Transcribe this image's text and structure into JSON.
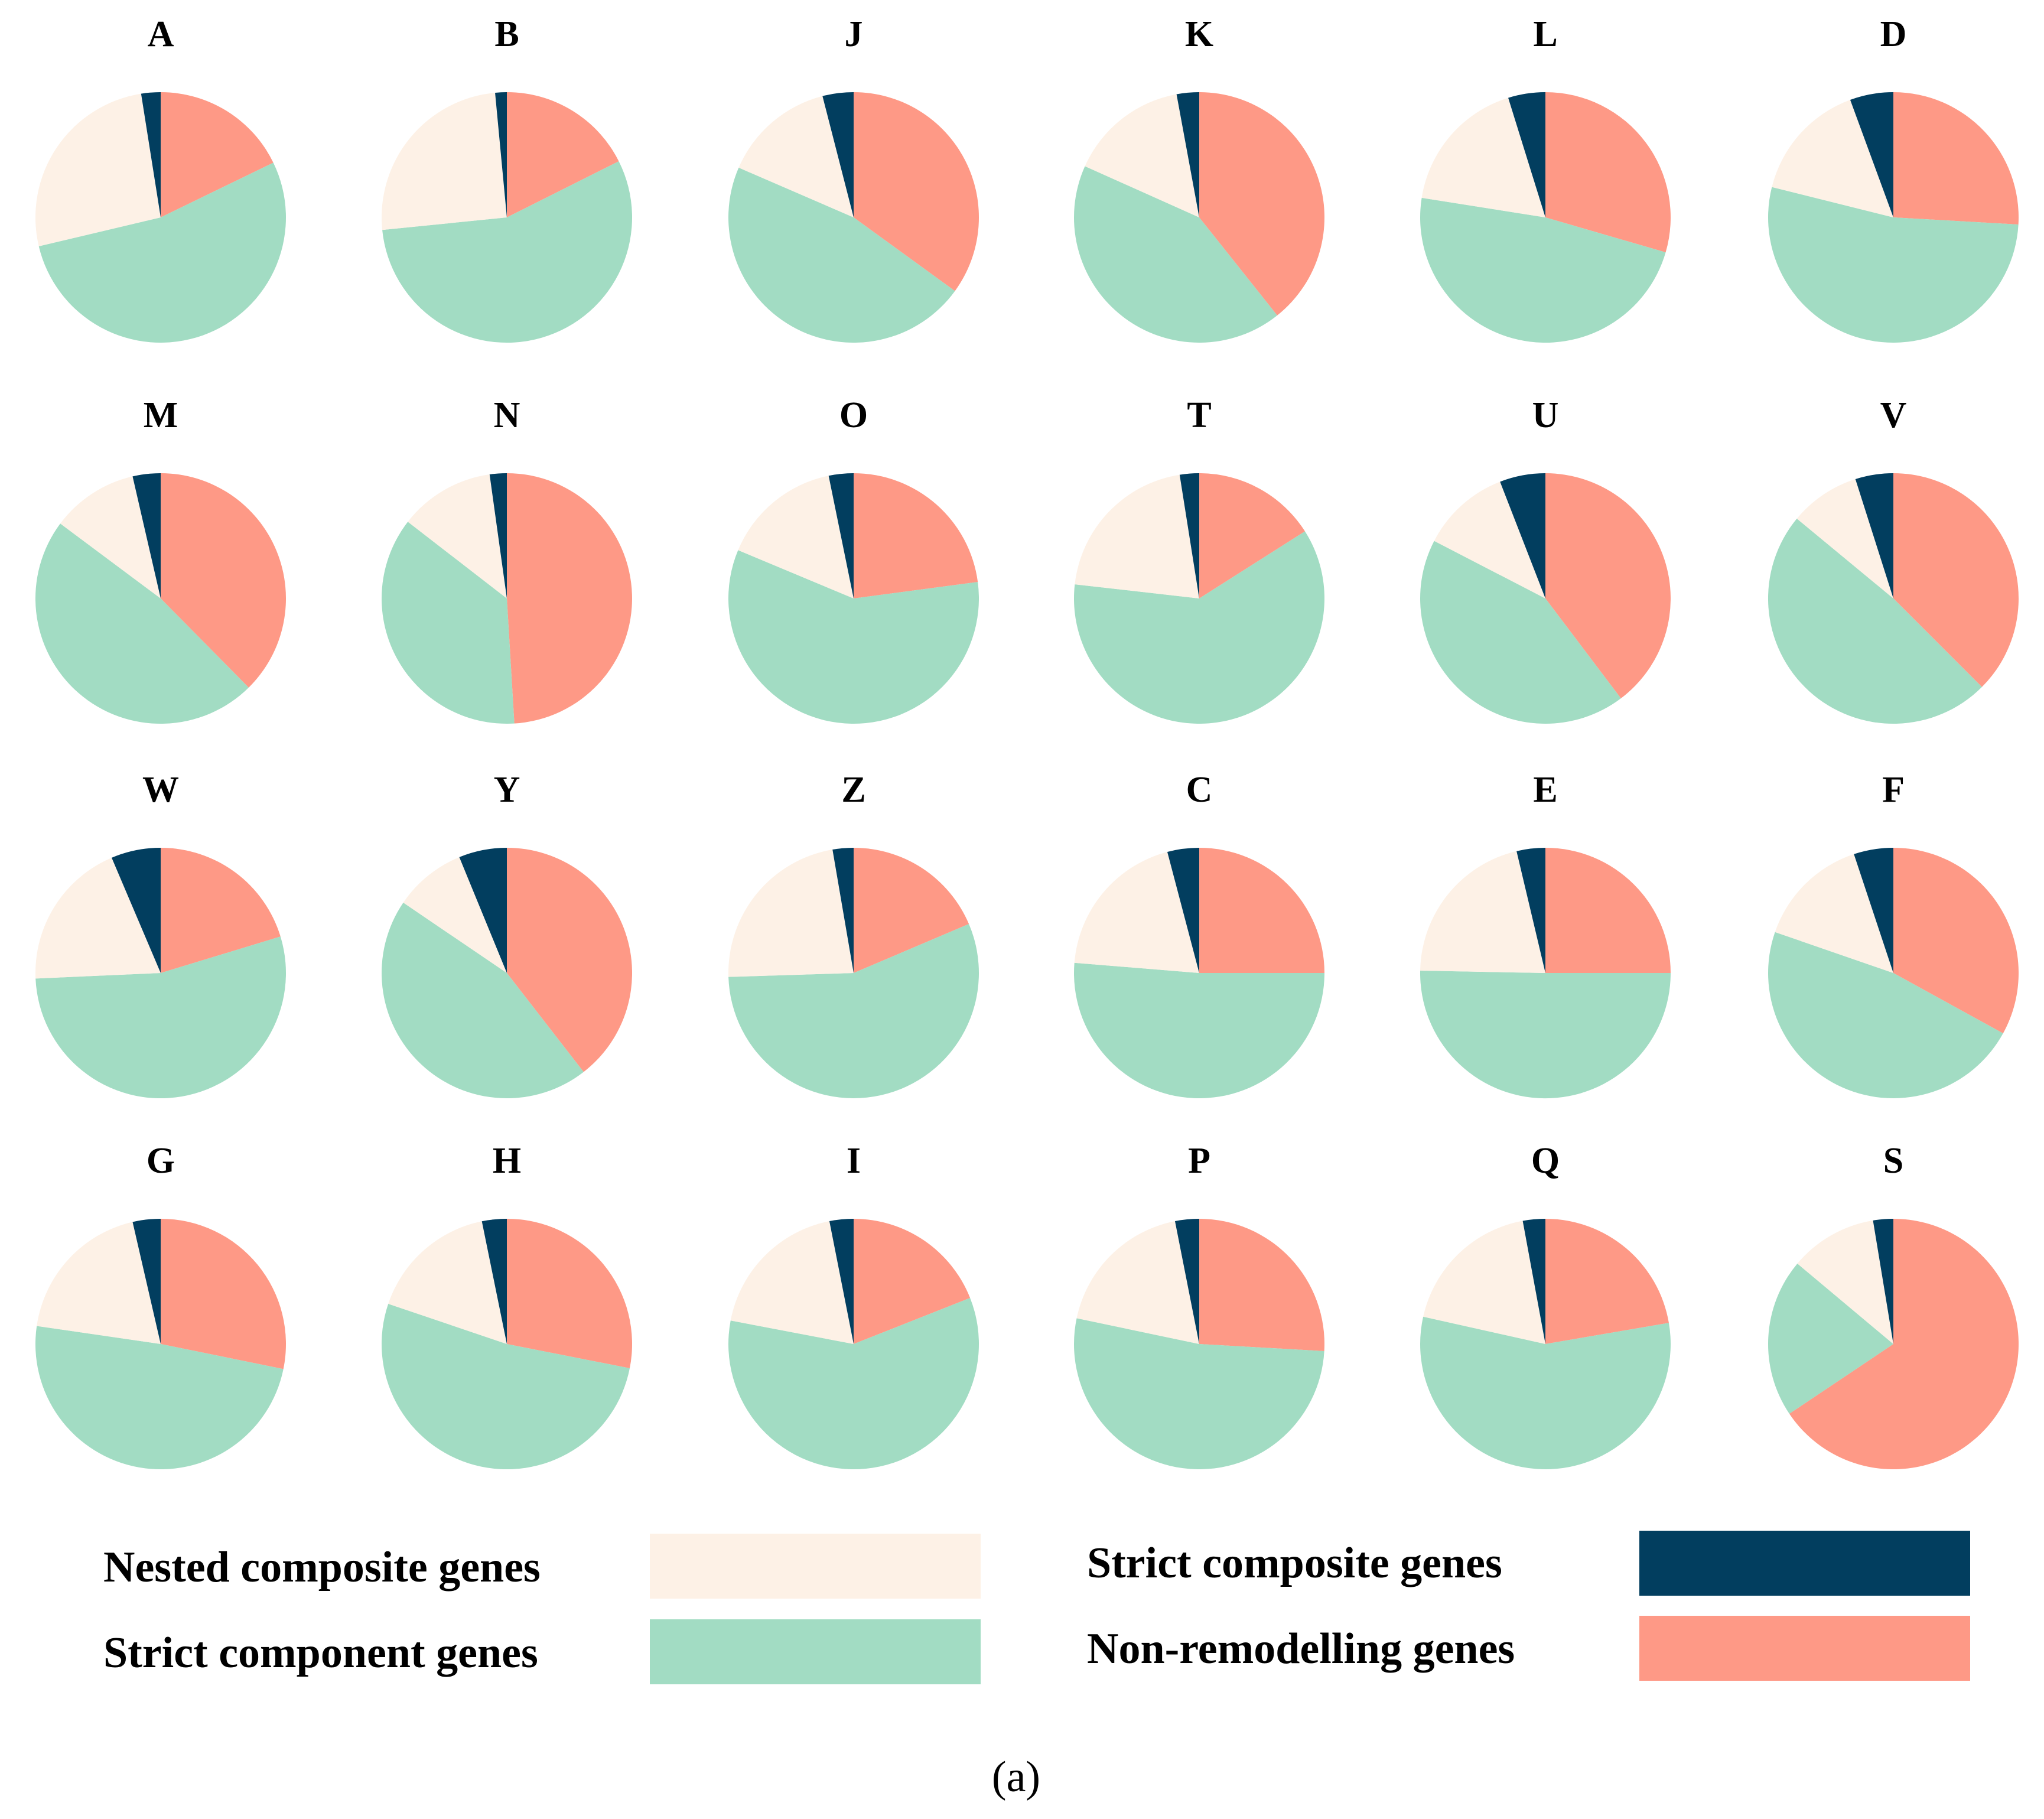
{
  "chart_data": {
    "type": "pie",
    "figure_label": "(a)",
    "slice_order": [
      "Non-remodelling genes",
      "Strict component genes",
      "Nested composite genes",
      "Strict composite genes"
    ],
    "colors": {
      "Nested composite genes": "#fdf1e6",
      "Strict component genes": "#a2dcc3",
      "Strict composite genes": "#023e5f",
      "Non-remodelling genes": "#fe9986"
    },
    "legend": [
      {
        "label": "Nested composite genes",
        "color": "#fdf1e6"
      },
      {
        "label": "Strict component genes",
        "color": "#a2dcc3"
      },
      {
        "label": "Strict composite genes",
        "color": "#023e5f"
      },
      {
        "label": "Non-remodelling genes",
        "color": "#fe9986"
      }
    ],
    "pies": [
      {
        "title": "A",
        "values": [
          17.8,
          53.5,
          26.2,
          2.5
        ]
      },
      {
        "title": "B",
        "values": [
          17.6,
          55.8,
          25.1,
          1.5
        ]
      },
      {
        "title": "J",
        "values": [
          35.0,
          46.5,
          14.5,
          4.0
        ]
      },
      {
        "title": "K",
        "values": [
          39.3,
          42.4,
          15.4,
          2.9
        ]
      },
      {
        "title": "L",
        "values": [
          29.5,
          48.0,
          17.7,
          4.8
        ]
      },
      {
        "title": "D",
        "values": [
          25.9,
          53.0,
          15.5,
          5.6
        ]
      },
      {
        "title": "M",
        "values": [
          37.6,
          47.6,
          11.2,
          3.6
        ]
      },
      {
        "title": "N",
        "values": [
          49.0,
          36.4,
          12.3,
          2.2
        ]
      },
      {
        "title": "O",
        "values": [
          22.9,
          58.4,
          15.5,
          3.2
        ]
      },
      {
        "title": "T",
        "values": [
          16.0,
          60.8,
          20.7,
          2.5
        ]
      },
      {
        "title": "U",
        "values": [
          39.7,
          42.9,
          11.5,
          5.9
        ]
      },
      {
        "title": "V",
        "values": [
          37.5,
          48.5,
          9.1,
          4.9
        ]
      },
      {
        "title": "W",
        "values": [
          20.3,
          54.0,
          19.3,
          6.4
        ]
      },
      {
        "title": "Y",
        "values": [
          39.5,
          45.0,
          9.3,
          6.2
        ]
      },
      {
        "title": "Z",
        "values": [
          18.6,
          55.9,
          22.8,
          2.7
        ]
      },
      {
        "title": "C",
        "values": [
          25.0,
          51.3,
          19.6,
          4.1
        ]
      },
      {
        "title": "E",
        "values": [
          25.0,
          50.3,
          21.0,
          3.7
        ]
      },
      {
        "title": "F",
        "values": [
          33.0,
          47.3,
          14.6,
          5.1
        ]
      },
      {
        "title": "G",
        "values": [
          28.2,
          49.1,
          19.1,
          3.6
        ]
      },
      {
        "title": "H",
        "values": [
          28.1,
          52.1,
          16.6,
          3.2
        ]
      },
      {
        "title": "I",
        "values": [
          19.0,
          59.0,
          18.9,
          3.1
        ]
      },
      {
        "title": "P",
        "values": [
          25.9,
          52.4,
          18.6,
          3.1
        ]
      },
      {
        "title": "Q",
        "values": [
          22.3,
          56.2,
          18.6,
          2.9
        ]
      },
      {
        "title": "S",
        "values": [
          65.6,
          20.5,
          11.3,
          2.6
        ]
      }
    ]
  }
}
